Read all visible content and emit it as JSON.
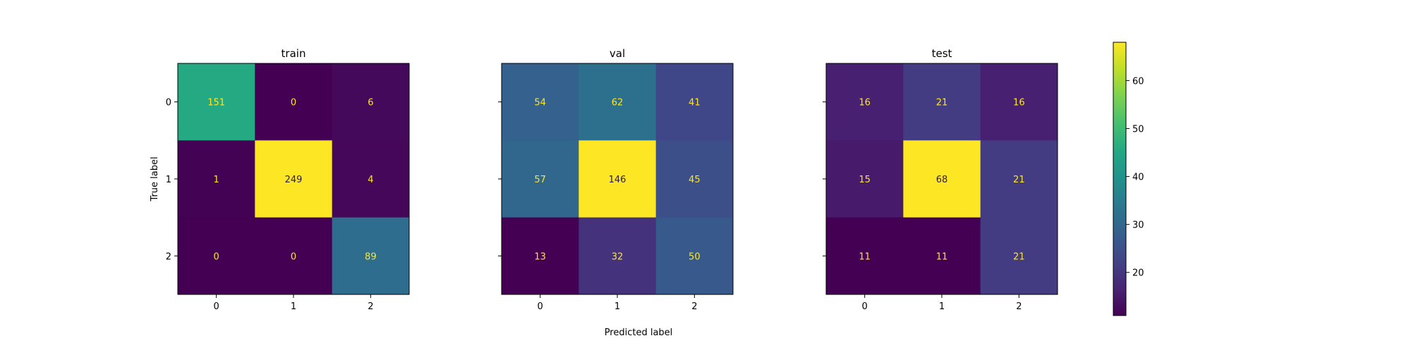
{
  "chart_data": {
    "type": "heatmap",
    "shared_xlabel": "Predicted label",
    "shared_ylabel": "True label",
    "panels": [
      {
        "title": "train",
        "x_ticks": [
          "0",
          "1",
          "2"
        ],
        "y_ticks": [
          "0",
          "1",
          "2"
        ],
        "matrix": [
          [
            151,
            0,
            6
          ],
          [
            1,
            249,
            4
          ],
          [
            0,
            0,
            89
          ]
        ]
      },
      {
        "title": "val",
        "x_ticks": [
          "0",
          "1",
          "2"
        ],
        "y_ticks": [],
        "matrix": [
          [
            54,
            62,
            41
          ],
          [
            57,
            146,
            45
          ],
          [
            13,
            32,
            50
          ]
        ]
      },
      {
        "title": "test",
        "x_ticks": [
          "0",
          "1",
          "2"
        ],
        "y_ticks": [],
        "matrix": [
          [
            16,
            21,
            16
          ],
          [
            15,
            68,
            21
          ],
          [
            11,
            11,
            21
          ]
        ]
      }
    ],
    "colorbar": {
      "range": [
        11,
        68
      ],
      "ticks": [
        20,
        30,
        40,
        50,
        60
      ],
      "colormap": "viridis"
    }
  }
}
